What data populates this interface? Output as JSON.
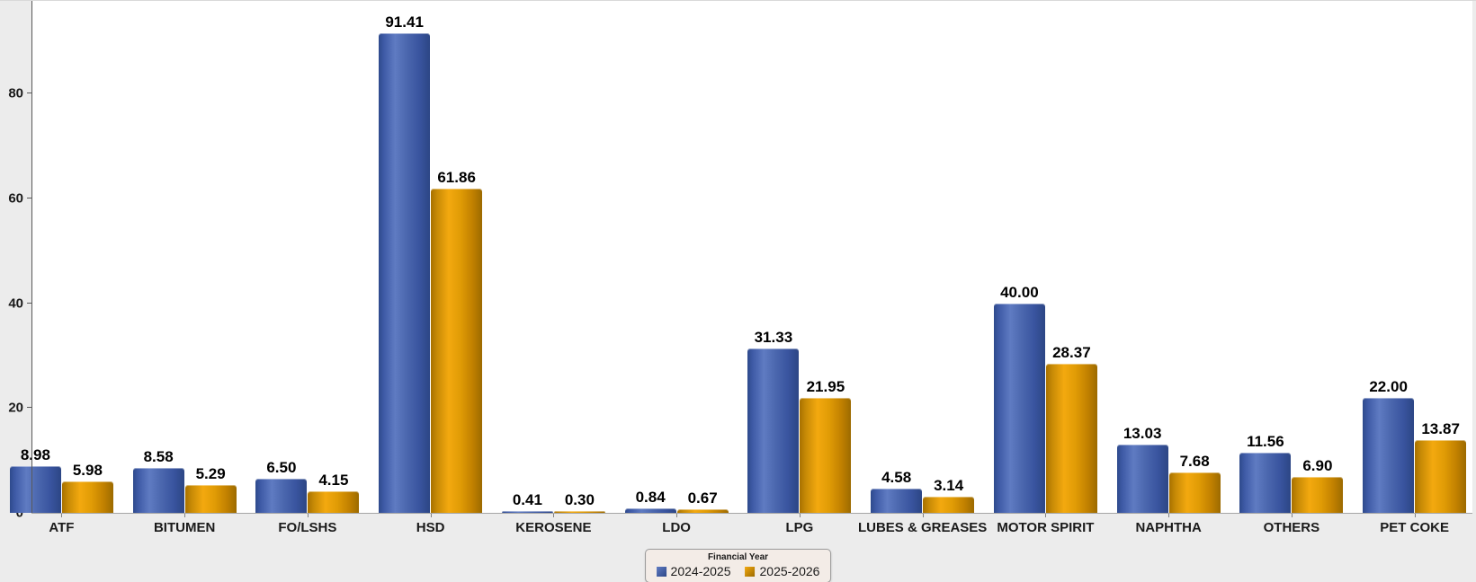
{
  "chart_data": {
    "type": "bar",
    "title": "",
    "xlabel": "",
    "ylabel": "",
    "categories": [
      "ATF",
      "BITUMEN",
      "FO/LSHS",
      "HSD",
      "KEROSENE",
      "LDO",
      "LPG",
      "LUBES & GREASES",
      "MOTOR SPIRIT",
      "NAPHTHA",
      "OTHERS",
      "PET COKE"
    ],
    "series": [
      {
        "name": "2024-2025",
        "color": "#3a57a7",
        "values": [
          8.98,
          8.58,
          6.5,
          91.41,
          0.41,
          0.84,
          31.33,
          4.58,
          40.0,
          13.03,
          11.56,
          22.0
        ]
      },
      {
        "name": "2025-2026",
        "color": "#e8a000",
        "values": [
          5.98,
          5.29,
          4.15,
          61.86,
          0.3,
          0.67,
          21.95,
          3.14,
          28.37,
          7.68,
          6.9,
          13.87
        ]
      }
    ],
    "y_ticks": [
      0,
      20,
      40,
      60,
      80
    ],
    "ylim": [
      0,
      97.64
    ],
    "grid": false,
    "data_labels": true,
    "data_label_decimals": 2,
    "legend_position": "bottom-center"
  },
  "legend": {
    "title": "Financial Year"
  },
  "colors": {
    "series_blue": "#3a57a7",
    "series_orange": "#e8a000",
    "plot_background": "#ffffff",
    "page_background": "#ececec",
    "axis_line": "#595959",
    "baseline": "#a6a6a6",
    "label_text": "#000000",
    "legend_background": "#f3ece7",
    "legend_border": "#9b9b9b"
  }
}
